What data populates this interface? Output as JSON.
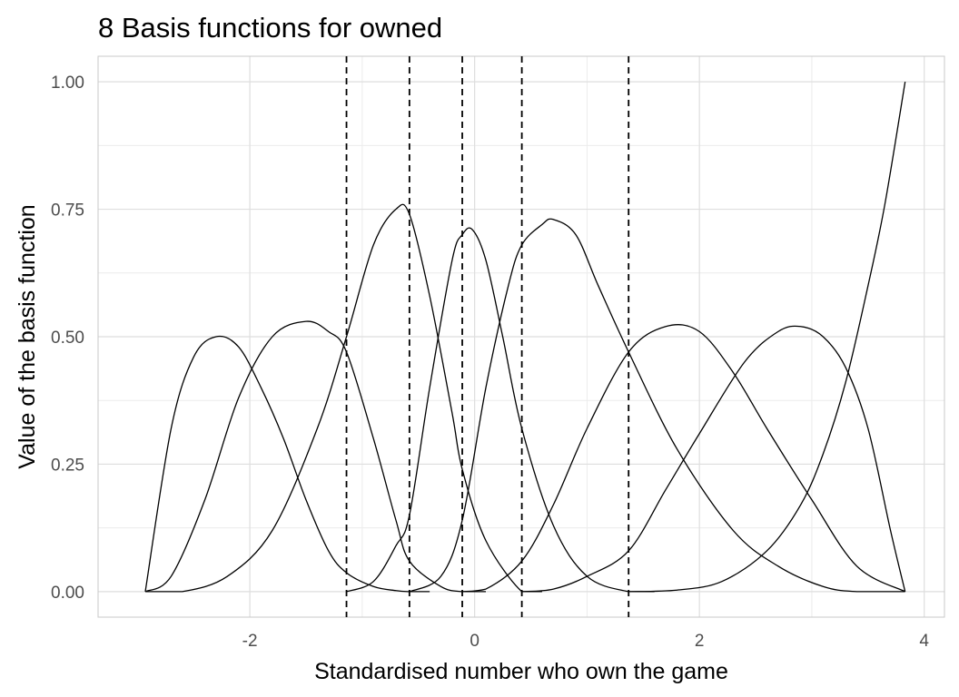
{
  "chart_data": {
    "type": "line",
    "title": "8 Basis functions for owned",
    "xlabel": "Standardised number who own the game",
    "ylabel": "Value of the basis function",
    "xlim": [
      -3.35,
      4.18
    ],
    "ylim": [
      -0.05,
      1.05
    ],
    "x_ticks": [
      -2,
      0,
      2,
      4
    ],
    "x_tick_labels": [
      "-2",
      "0",
      "2",
      "4"
    ],
    "y_ticks": [
      0,
      0.25,
      0.5,
      0.75,
      1.0
    ],
    "y_tick_labels": [
      "0.00",
      "0.25",
      "0.50",
      "0.75",
      "1.00"
    ],
    "grid": true,
    "legend": "none",
    "colors": {
      "line": "#000000",
      "grid_major": "#dedede",
      "grid_minor": "#ececec",
      "panel_border": "#c8c8c8"
    },
    "knots": [
      -1.14,
      -0.58,
      -0.11,
      0.42,
      1.37
    ],
    "boundary_knots": [
      -2.93,
      3.83
    ],
    "spline_degree": 3,
    "series": [
      {
        "x": [
          -2.93,
          -2.7,
          -2.5,
          -2.3,
          -2.1,
          -1.9,
          -1.7,
          -1.5,
          -1.3,
          -1.14,
          -0.9,
          -0.7,
          -0.58,
          -0.4
        ],
        "values": [
          0,
          0.32,
          0.46,
          0.5,
          0.48,
          0.4,
          0.3,
          0.18,
          0.08,
          0.037,
          0.01,
          0.002,
          0,
          0
        ]
      },
      {
        "x": [
          -2.93,
          -2.7,
          -2.4,
          -2.1,
          -1.8,
          -1.5,
          -1.3,
          -1.14,
          -0.9,
          -0.7,
          -0.58,
          -0.3,
          -0.11,
          0.1
        ],
        "values": [
          0,
          0.03,
          0.18,
          0.38,
          0.5,
          0.53,
          0.51,
          0.47,
          0.3,
          0.14,
          0.06,
          0.01,
          0,
          0
        ]
      },
      {
        "x": [
          -2.93,
          -2.6,
          -2.2,
          -1.8,
          -1.4,
          -1.14,
          -0.9,
          -0.7,
          -0.58,
          -0.4,
          -0.2,
          -0.11,
          0.1,
          0.42,
          0.6
        ],
        "values": [
          0,
          0.0,
          0.03,
          0.12,
          0.32,
          0.5,
          0.68,
          0.75,
          0.74,
          0.58,
          0.35,
          0.24,
          0.1,
          0,
          0
        ]
      },
      {
        "x": [
          -1.14,
          -0.9,
          -0.7,
          -0.58,
          -0.4,
          -0.2,
          -0.11,
          -0.02,
          0.1,
          0.25,
          0.42,
          0.7,
          1.0,
          1.37,
          1.6
        ],
        "values": [
          0,
          0.02,
          0.09,
          0.15,
          0.4,
          0.65,
          0.7,
          0.71,
          0.65,
          0.5,
          0.32,
          0.13,
          0.03,
          0,
          0
        ]
      },
      {
        "x": [
          -0.58,
          -0.3,
          -0.11,
          0.1,
          0.3,
          0.42,
          0.6,
          0.7,
          0.9,
          1.1,
          1.37,
          1.8,
          2.3,
          2.7,
          3.1,
          3.4,
          3.83
        ],
        "values": [
          0,
          0.03,
          0.14,
          0.4,
          0.6,
          0.68,
          0.72,
          0.73,
          0.7,
          0.6,
          0.47,
          0.28,
          0.12,
          0.05,
          0.01,
          0,
          0
        ]
      },
      {
        "x": [
          -0.11,
          0.1,
          0.42,
          0.7,
          1.0,
          1.37,
          1.7,
          2.0,
          2.3,
          2.6,
          3.0,
          3.4,
          3.83
        ],
        "values": [
          0,
          0.005,
          0.06,
          0.17,
          0.32,
          0.47,
          0.52,
          0.51,
          0.43,
          0.32,
          0.18,
          0.05,
          0
        ]
      },
      {
        "x": [
          0.42,
          0.7,
          1.0,
          1.37,
          1.7,
          2.0,
          2.4,
          2.7,
          2.9,
          3.1,
          3.3,
          3.5,
          3.7,
          3.83
        ],
        "values": [
          0,
          0.005,
          0.03,
          0.08,
          0.2,
          0.31,
          0.45,
          0.51,
          0.52,
          0.5,
          0.44,
          0.32,
          0.12,
          0
        ]
      },
      {
        "x": [
          1.37,
          1.8,
          2.2,
          2.6,
          2.9,
          3.1,
          3.3,
          3.5,
          3.65,
          3.83
        ],
        "values": [
          0,
          0.003,
          0.02,
          0.08,
          0.17,
          0.27,
          0.41,
          0.6,
          0.76,
          1.0
        ]
      }
    ]
  }
}
